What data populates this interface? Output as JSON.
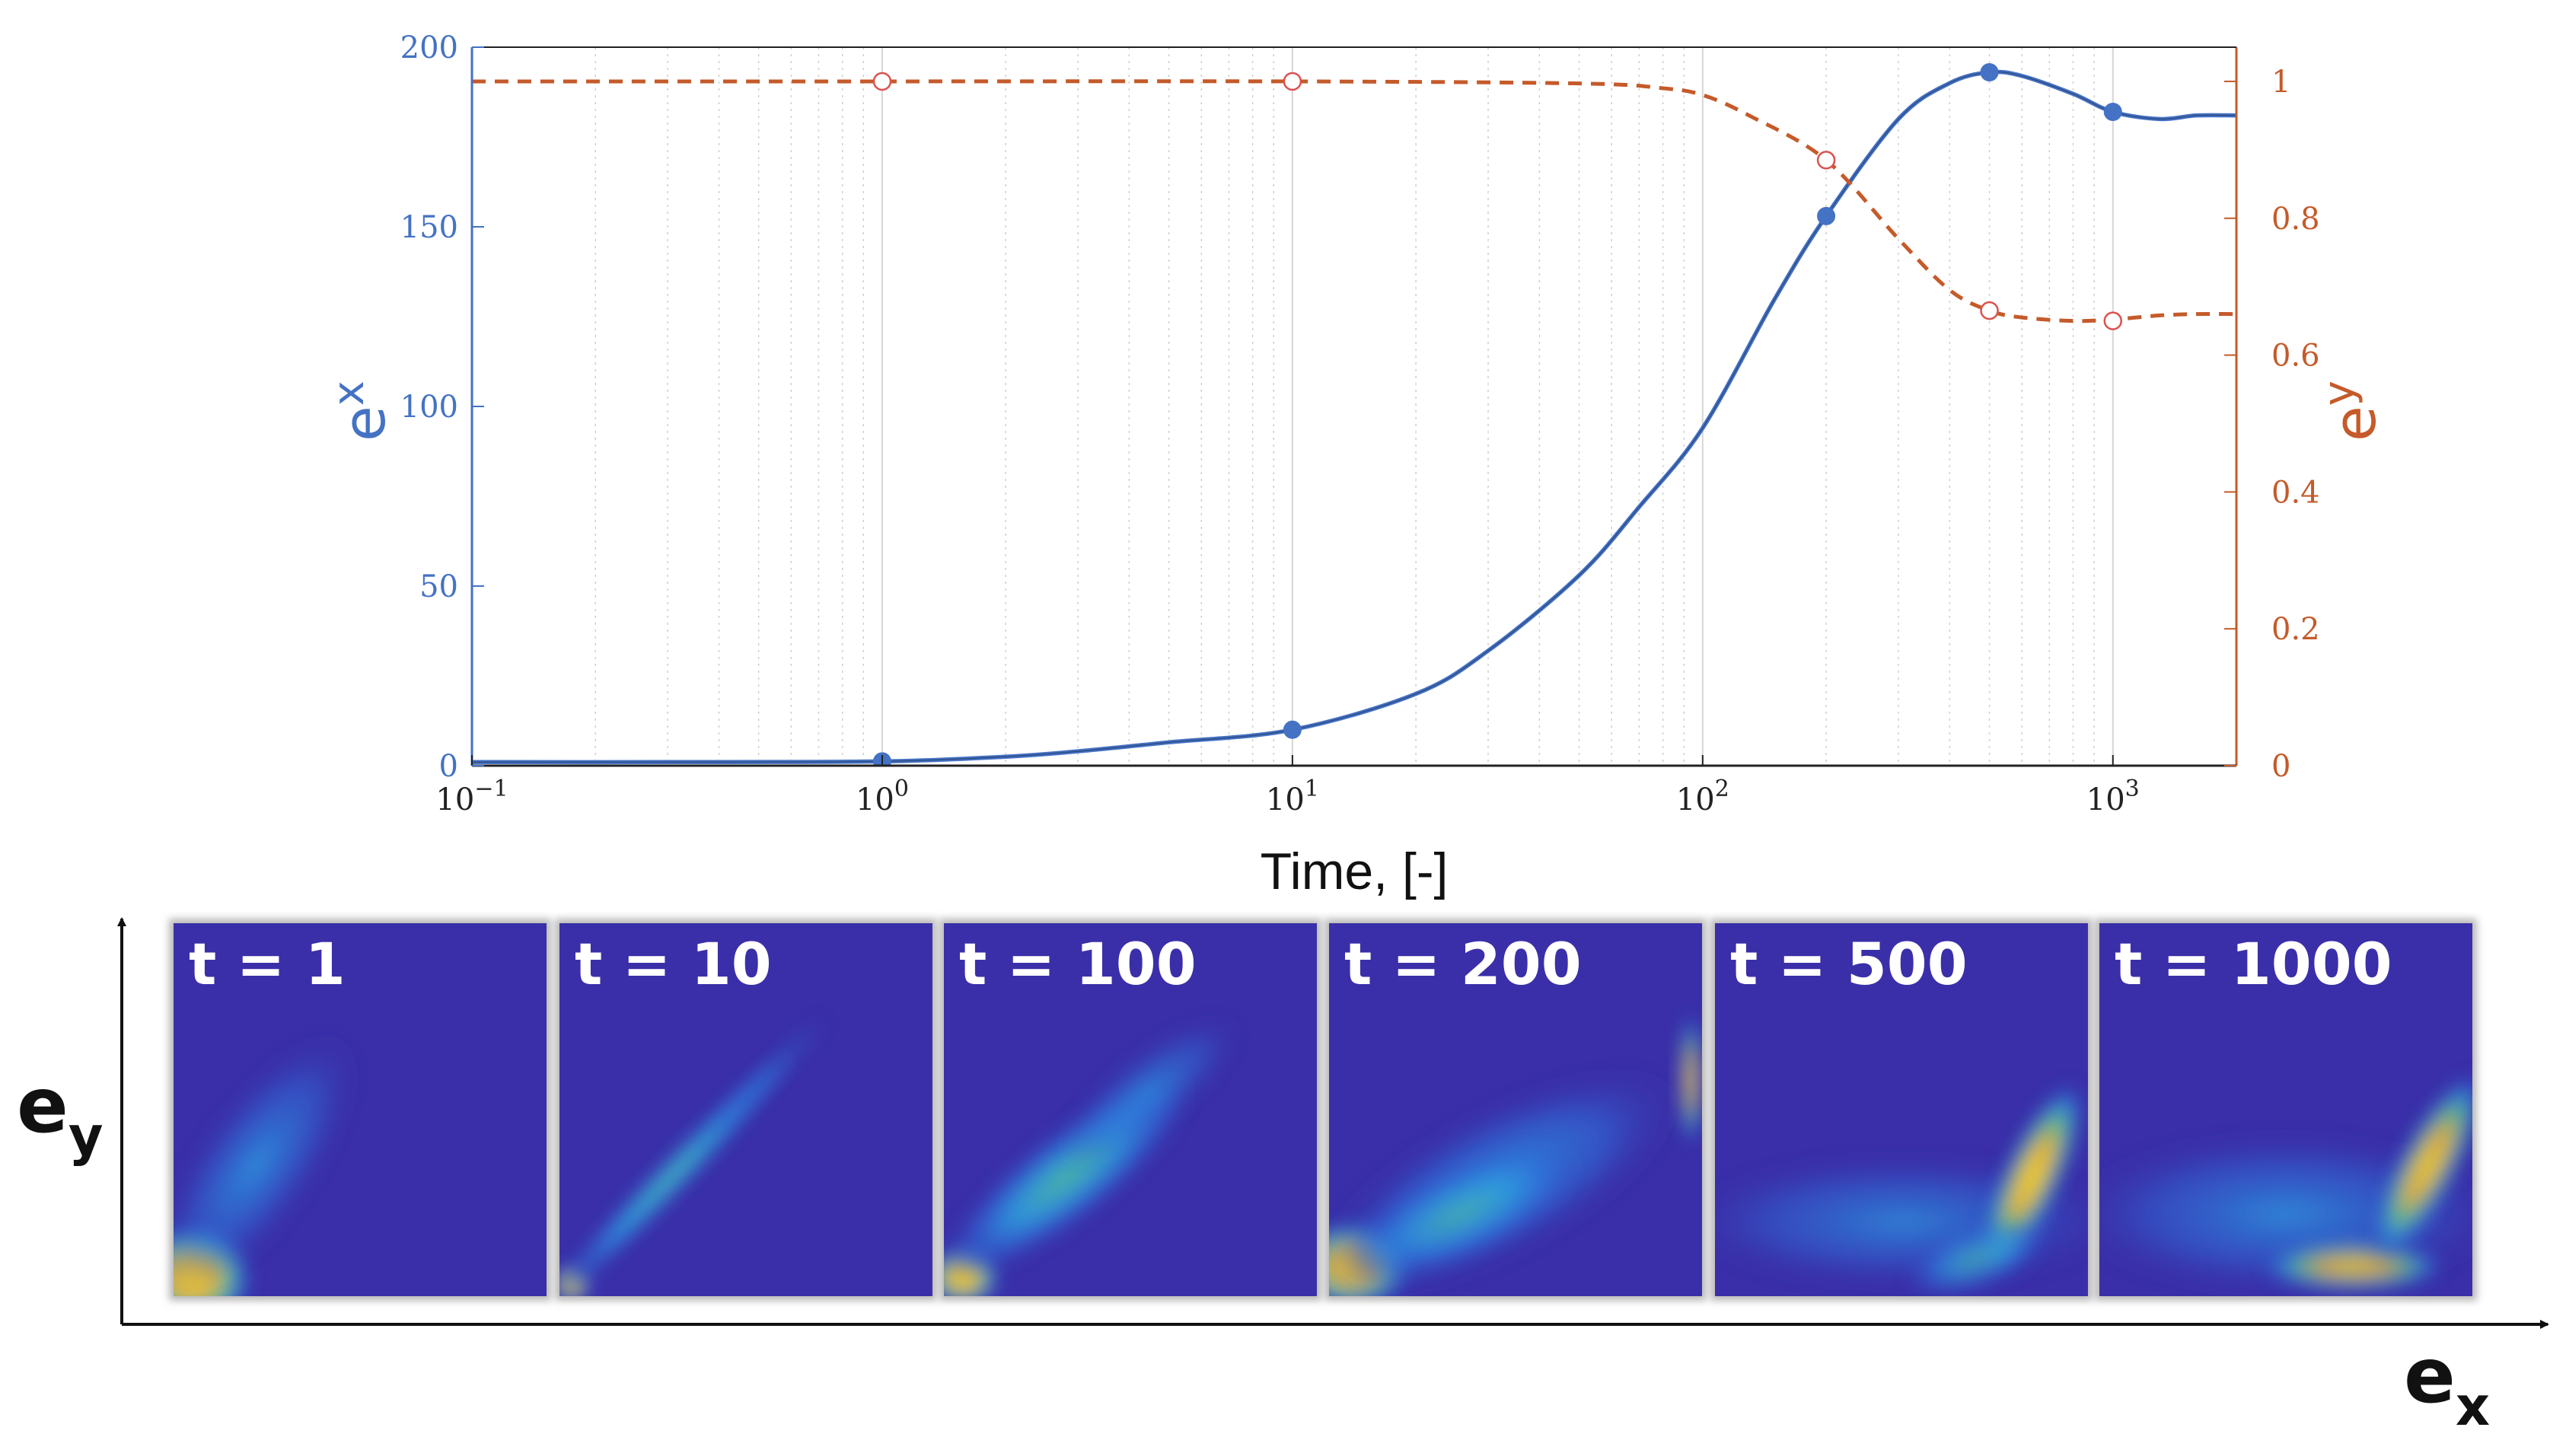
{
  "chart_data": {
    "type": "line",
    "x_scale": "log",
    "xlim": [
      0.1,
      2000
    ],
    "xlabel": "Time, [-]",
    "x_ticks": [
      {
        "value": 0.1,
        "base": "10",
        "exp": "−1"
      },
      {
        "value": 1,
        "base": "10",
        "exp": "0"
      },
      {
        "value": 10,
        "base": "10",
        "exp": "1"
      },
      {
        "value": 100,
        "base": "10",
        "exp": "2"
      },
      {
        "value": 1000,
        "base": "10",
        "exp": "3"
      }
    ],
    "left_axis": {
      "label_base": "e",
      "label_sub": "x",
      "ylim": [
        0,
        200
      ],
      "ticks": [
        {
          "value": 0,
          "label": "0"
        },
        {
          "value": 50,
          "label": "50"
        },
        {
          "value": 100,
          "label": "100"
        },
        {
          "value": 150,
          "label": "150"
        },
        {
          "value": 200,
          "label": "200"
        }
      ],
      "color": "#4472C4"
    },
    "right_axis": {
      "label_base": "e",
      "label_sub": "y",
      "ylim": [
        0,
        1.05
      ],
      "ticks": [
        {
          "value": 0,
          "label": "0"
        },
        {
          "value": 0.2,
          "label": "0.2"
        },
        {
          "value": 0.4,
          "label": "0.4"
        },
        {
          "value": 0.6,
          "label": "0.6"
        },
        {
          "value": 0.8,
          "label": "0.8"
        },
        {
          "value": 1,
          "label": "1"
        }
      ],
      "color": "#C55A2A"
    },
    "series": [
      {
        "name": "e_x",
        "axis": "left",
        "style": "solid",
        "color": "#4472C4",
        "x": [
          0.1,
          0.3,
          1,
          2,
          3,
          5,
          10,
          20,
          30,
          50,
          70,
          100,
          150,
          200,
          300,
          400,
          500,
          600,
          800,
          1000,
          1300,
          1600,
          2000
        ],
        "y": [
          1,
          1,
          1.2,
          2.5,
          4,
          6.5,
          10,
          20,
          32,
          53,
          72,
          94,
          130,
          153,
          180,
          190,
          193,
          192,
          187,
          182,
          180,
          181,
          181
        ],
        "markers": [
          {
            "x": 1,
            "y": 1.2
          },
          {
            "x": 10,
            "y": 10
          },
          {
            "x": 200,
            "y": 153
          },
          {
            "x": 500,
            "y": 193
          },
          {
            "x": 1000,
            "y": 182
          }
        ]
      },
      {
        "name": "e_y",
        "axis": "right",
        "style": "dashed",
        "color": "#C55A2A",
        "x": [
          0.1,
          1,
          10,
          50,
          80,
          100,
          130,
          200,
          300,
          400,
          500,
          600,
          800,
          1000,
          1300,
          1600,
          2000
        ],
        "y": [
          1,
          1,
          1,
          0.997,
          0.99,
          0.98,
          0.95,
          0.885,
          0.77,
          0.695,
          0.665,
          0.655,
          0.65,
          0.652,
          0.658,
          0.66,
          0.66
        ],
        "markers": [
          {
            "x": 1,
            "y": 1
          },
          {
            "x": 10,
            "y": 1
          },
          {
            "x": 200,
            "y": 0.885
          },
          {
            "x": 500,
            "y": 0.665
          },
          {
            "x": 1000,
            "y": 0.65
          }
        ]
      }
    ]
  },
  "heatmaps": {
    "x_axis_label_base": "e",
    "x_axis_label_sub": "x",
    "y_axis_label_base": "e",
    "y_axis_label_sub": "y",
    "panels": [
      {
        "label": "t = 1"
      },
      {
        "label": "t = 10"
      },
      {
        "label": "t = 100"
      },
      {
        "label": "t = 200"
      },
      {
        "label": "t = 500"
      },
      {
        "label": "t = 1000"
      }
    ]
  }
}
